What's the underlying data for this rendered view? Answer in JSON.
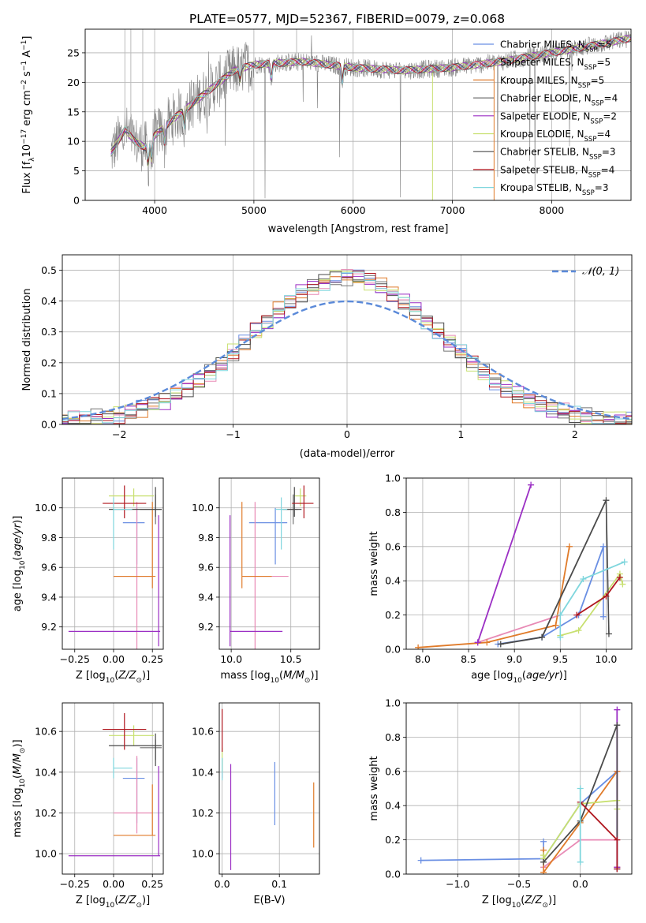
{
  "figure": {
    "title": "PLATE=0577, MJD=52367, FIBERID=0079, z=0.068"
  },
  "models": [
    {
      "name": "Chabrier MILES",
      "nssp": "5",
      "color": "#6a8fe3"
    },
    {
      "name": "Salpeter MILES",
      "nssp": "5",
      "color": "#e88ab5"
    },
    {
      "name": "Kroupa MILES",
      "nssp": "5",
      "color": "#e07b2a"
    },
    {
      "name": "Chabrier ELODIE",
      "nssp": "4",
      "color": "#737373"
    },
    {
      "name": "Salpeter ELODIE",
      "nssp": "2",
      "color": "#9b2fc4"
    },
    {
      "name": "Kroupa ELODIE",
      "nssp": "4",
      "color": "#c8e070"
    },
    {
      "name": "Chabrier STELIB",
      "nssp": "3",
      "color": "#4a4a4a"
    },
    {
      "name": "Salpeter STELIB",
      "nssp": "4",
      "color": "#b0171f"
    },
    {
      "name": "Kroupa STELIB",
      "nssp": "3",
      "color": "#7fd6dd"
    }
  ],
  "chart_data": [
    {
      "id": "spectrum",
      "type": "line",
      "title": "PLATE=0577, MJD=52367, FIBERID=0079, z=0.068",
      "xlabel": "wavelength [Angstrom, rest frame]",
      "ylabel": "Flux [fλ10⁻¹⁷ erg cm⁻² s⁻¹ A⁻¹]",
      "xlim": [
        3300,
        8800
      ],
      "ylim": [
        0,
        29
      ],
      "xticks": [
        4000,
        5000,
        6000,
        7000,
        8000
      ],
      "yticks": [
        0,
        5,
        10,
        15,
        20,
        25
      ],
      "data_color": "#808080",
      "continuum_anchors": [
        [
          3560,
          8
        ],
        [
          3700,
          12
        ],
        [
          3800,
          10
        ],
        [
          3900,
          9
        ],
        [
          4000,
          11
        ],
        [
          4200,
          14
        ],
        [
          4500,
          18
        ],
        [
          4800,
          22
        ],
        [
          5000,
          23
        ],
        [
          5500,
          23.5
        ],
        [
          6000,
          22.5
        ],
        [
          6500,
          22
        ],
        [
          7000,
          22.5
        ],
        [
          7500,
          23.5
        ],
        [
          8000,
          25
        ],
        [
          8500,
          26.5
        ],
        [
          8800,
          27.5
        ]
      ],
      "grid": true,
      "legend": "upper right"
    },
    {
      "id": "residuals",
      "type": "step",
      "xlabel": "(data-model)/error",
      "ylabel": "Normed distribution",
      "xlim": [
        -2.5,
        2.5
      ],
      "ylim": [
        0,
        0.55
      ],
      "xticks": [
        -2,
        -1,
        0,
        1,
        2
      ],
      "yticks": [
        0.0,
        0.1,
        0.2,
        0.3,
        0.4,
        0.5
      ],
      "normal_label": "𝒩(0, 1)",
      "normal_color": "#5b8ad9",
      "grid": true,
      "legend": "upper right"
    },
    {
      "id": "age-vs-Z",
      "type": "errorbar",
      "xlabel": "Z [log10(Z/Z⊙)]",
      "ylabel": "age [log10(age/yr)]",
      "xlim": [
        -0.33,
        0.32
      ],
      "ylim": [
        9.05,
        10.2
      ],
      "xticks": [
        -0.25,
        0.0,
        0.25
      ],
      "yticks": [
        9.2,
        9.4,
        9.6,
        9.8,
        10.0
      ],
      "points": [
        {
          "model": 0,
          "x": 0.15,
          "xerr": [
            0.09,
            0.05
          ],
          "y": 9.9,
          "yerr": [
            0.28,
            0.1
          ]
        },
        {
          "model": 1,
          "x": 0.15,
          "xerr": [
            0.15,
            0.1
          ],
          "y": 9.54,
          "yerr": [
            0.5,
            0.5
          ]
        },
        {
          "model": 2,
          "x": 0.25,
          "xerr": [
            0.25,
            0.02
          ],
          "y": 9.54,
          "yerr": [
            0.08,
            0.5
          ]
        },
        {
          "model": 3,
          "x": 0.27,
          "xerr": [
            0.1,
            0.04
          ],
          "y": 9.99,
          "yerr": [
            0.1,
            0.1
          ]
        },
        {
          "model": 4,
          "x": 0.29,
          "xerr": [
            0.58,
            0.01
          ],
          "y": 9.17,
          "yerr": [
            0.1,
            0.78
          ]
        },
        {
          "model": 5,
          "x": 0.13,
          "xerr": [
            0.16,
            0.13
          ],
          "y": 10.08,
          "yerr": [
            0.07,
            0.05
          ]
        },
        {
          "model": 6,
          "x": 0.27,
          "xerr": [
            0.3,
            0.04
          ],
          "y": 9.99,
          "yerr": [
            0.05,
            0.15
          ]
        },
        {
          "model": 7,
          "x": 0.07,
          "xerr": [
            0.14,
            0.14
          ],
          "y": 10.03,
          "yerr": [
            0.1,
            0.12
          ]
        },
        {
          "model": 8,
          "x": 0.0,
          "xerr": [
            0.0,
            0.12
          ],
          "y": 9.99,
          "yerr": [
            0.27,
            0.08
          ]
        }
      ]
    },
    {
      "id": "age-vs-mass",
      "type": "errorbar",
      "xlabel": "mass [log10(M/M⊙)]",
      "ylabel": "",
      "xlim": [
        9.9,
        10.74
      ],
      "ylim": [
        9.05,
        10.2
      ],
      "xticks": [
        10.0,
        10.5
      ],
      "yticks": [
        9.2,
        9.4,
        9.6,
        9.8,
        10.0
      ],
      "points": [
        {
          "model": 0,
          "x": 10.37,
          "xerr": [
            0.22,
            0.1
          ],
          "y": 9.9,
          "yerr": [
            0.28,
            0.1
          ]
        },
        {
          "model": 1,
          "x": 10.2,
          "xerr": [
            0.1,
            0.28
          ],
          "y": 9.54,
          "yerr": [
            0.5,
            0.5
          ]
        },
        {
          "model": 2,
          "x": 10.09,
          "xerr": [
            0.0,
            0.25
          ],
          "y": 9.54,
          "yerr": [
            0.08,
            0.5
          ]
        },
        {
          "model": 3,
          "x": 10.52,
          "xerr": [
            0.06,
            0.04
          ],
          "y": 9.99,
          "yerr": [
            0.1,
            0.1
          ]
        },
        {
          "model": 4,
          "x": 9.99,
          "xerr": [
            0.0,
            0.44
          ],
          "y": 9.17,
          "yerr": [
            0.1,
            0.78
          ]
        },
        {
          "model": 5,
          "x": 10.58,
          "xerr": [
            0.05,
            0.05
          ],
          "y": 10.08,
          "yerr": [
            0.07,
            0.05
          ]
        },
        {
          "model": 6,
          "x": 10.53,
          "xerr": [
            0.1,
            0.06
          ],
          "y": 9.99,
          "yerr": [
            0.05,
            0.15
          ]
        },
        {
          "model": 7,
          "x": 10.61,
          "xerr": [
            0.1,
            0.08
          ],
          "y": 10.03,
          "yerr": [
            0.1,
            0.12
          ]
        },
        {
          "model": 8,
          "x": 10.42,
          "xerr": [
            0.05,
            0.05
          ],
          "y": 9.99,
          "yerr": [
            0.27,
            0.08
          ]
        }
      ]
    },
    {
      "id": "weight-vs-age",
      "type": "line",
      "xlabel": "age [log10(age/yr)]",
      "ylabel": "mass weight",
      "xlim": [
        7.82,
        10.28
      ],
      "ylim": [
        0,
        1
      ],
      "xticks": [
        8.0,
        8.5,
        9.0,
        9.5,
        10.0
      ],
      "yticks": [
        0.0,
        0.2,
        0.4,
        0.6,
        0.8,
        1.0
      ],
      "series": [
        {
          "model": 0,
          "x": [
            8.82,
            9.3,
            9.7,
            9.97
          ],
          "y": [
            0.03,
            0.07,
            0.2,
            0.6
          ],
          "drop": [
            [
              9.97,
              0.19
            ]
          ]
        },
        {
          "model": 1,
          "x": [
            8.6,
            9.5
          ],
          "y": [
            0.04,
            0.2
          ]
        },
        {
          "model": 2,
          "x": [
            7.95,
            8.7,
            9.45,
            9.6
          ],
          "y": [
            0.01,
            0.04,
            0.14,
            0.6
          ]
        },
        {
          "model": 4,
          "x": [
            8.6,
            9.18
          ],
          "y": [
            0.04,
            0.96
          ]
        },
        {
          "model": 5,
          "x": [
            9.5,
            9.7,
            10.15,
            10.18
          ],
          "y": [
            0.08,
            0.11,
            0.44,
            0.38
          ]
        },
        {
          "model": 6,
          "x": [
            8.85,
            9.3,
            10.0
          ],
          "y": [
            0.03,
            0.07,
            0.87
          ],
          "drop": [
            [
              10.03,
              0.09
            ]
          ]
        },
        {
          "model": 7,
          "x": [
            9.68,
            10.0,
            10.15
          ],
          "y": [
            0.2,
            0.31,
            0.42
          ]
        },
        {
          "model": 8,
          "x": [
            9.5,
            9.75,
            10.2
          ],
          "y": [
            0.2,
            0.41,
            0.51
          ],
          "drop": [
            [
              9.5,
              0.07
            ]
          ]
        }
      ]
    },
    {
      "id": "mass-vs-Z",
      "type": "errorbar",
      "xlabel": "Z [log10(Z/Z⊙)]",
      "ylabel": "mass [log10(M/M⊙)]",
      "xlim": [
        -0.33,
        0.32
      ],
      "ylim": [
        9.9,
        10.74
      ],
      "xticks": [
        -0.25,
        0.0,
        0.25
      ],
      "yticks": [
        10.0,
        10.2,
        10.4,
        10.6
      ],
      "points": [
        {
          "model": 0,
          "x": 0.15,
          "xerr": [
            0.09,
            0.05
          ],
          "y": 10.37,
          "yerr": [
            0.22,
            0.1
          ]
        },
        {
          "model": 1,
          "x": 0.15,
          "xerr": [
            0.15,
            0.1
          ],
          "y": 10.2,
          "yerr": [
            0.1,
            0.28
          ]
        },
        {
          "model": 2,
          "x": 0.25,
          "xerr": [
            0.25,
            0.02
          ],
          "y": 10.09,
          "yerr": [
            0.0,
            0.25
          ]
        },
        {
          "model": 3,
          "x": 0.27,
          "xerr": [
            0.1,
            0.04
          ],
          "y": 10.52,
          "yerr": [
            0.06,
            0.04
          ]
        },
        {
          "model": 4,
          "x": 0.29,
          "xerr": [
            0.58,
            0.01
          ],
          "y": 9.99,
          "yerr": [
            0.0,
            0.44
          ]
        },
        {
          "model": 5,
          "x": 0.13,
          "xerr": [
            0.16,
            0.13
          ],
          "y": 10.58,
          "yerr": [
            0.05,
            0.05
          ]
        },
        {
          "model": 6,
          "x": 0.27,
          "xerr": [
            0.3,
            0.04
          ],
          "y": 10.53,
          "yerr": [
            0.1,
            0.06
          ]
        },
        {
          "model": 7,
          "x": 0.07,
          "xerr": [
            0.14,
            0.14
          ],
          "y": 10.61,
          "yerr": [
            0.1,
            0.08
          ]
        },
        {
          "model": 8,
          "x": 0.0,
          "xerr": [
            0.0,
            0.12
          ],
          "y": 10.42,
          "yerr": [
            0.05,
            0.05
          ]
        }
      ]
    },
    {
      "id": "mass-vs-EBV",
      "type": "errorbar",
      "xlabel": "E(B-V)",
      "ylabel": "",
      "xlim": [
        -0.005,
        0.17
      ],
      "ylim": [
        9.9,
        10.74
      ],
      "xticks": [
        0.0,
        0.1
      ],
      "yticks": [
        10.0,
        10.2,
        10.4,
        10.6
      ],
      "points": [
        {
          "model": 0,
          "x": 0.092,
          "xerr": [
            0,
            0
          ],
          "y": 10.3,
          "yerr": [
            0.16,
            0.15
          ]
        },
        {
          "model": 1,
          "x": 0.0,
          "xerr": [
            0,
            0
          ],
          "y": 10.42,
          "yerr": [
            0.05,
            0.05
          ]
        },
        {
          "model": 2,
          "x": 0.16,
          "xerr": [
            0,
            0
          ],
          "y": 10.2,
          "yerr": [
            0.17,
            0.15
          ]
        },
        {
          "model": 4,
          "x": 0.015,
          "xerr": [
            0,
            0
          ],
          "y": 10.18,
          "yerr": [
            0.26,
            0.26
          ]
        },
        {
          "model": 5,
          "x": 0.0,
          "xerr": [
            0,
            0
          ],
          "y": 10.46,
          "yerr": [
            0.06,
            0.06
          ]
        },
        {
          "model": 7,
          "x": 0.0,
          "xerr": [
            0,
            0
          ],
          "y": 10.6,
          "yerr": [
            0.1,
            0.11
          ]
        },
        {
          "model": 8,
          "x": 0.0,
          "xerr": [
            0,
            0
          ],
          "y": 10.42,
          "yerr": [
            0.06,
            0.05
          ]
        }
      ]
    },
    {
      "id": "weight-vs-Z",
      "type": "line",
      "xlabel": "Z [log10(Z/Z⊙)]",
      "ylabel": "mass weight",
      "xlim": [
        -1.42,
        0.42
      ],
      "ylim": [
        0,
        1
      ],
      "xticks": [
        -1.0,
        -0.5,
        0.0
      ],
      "yticks": [
        0.0,
        0.2,
        0.4,
        0.6,
        0.8,
        1.0
      ],
      "series": [
        {
          "model": 0,
          "x": [
            -1.3,
            -0.3,
            0.0,
            0.3
          ],
          "y": [
            0.08,
            0.09,
            0.41,
            0.6
          ],
          "drop": [
            [
              -0.3,
              0.19
            ],
            [
              0.3,
              0.03
            ]
          ]
        },
        {
          "model": 1,
          "x": [
            -0.3,
            0.0,
            0.3
          ],
          "y": [
            0.04,
            0.2,
            0.2
          ]
        },
        {
          "model": 2,
          "x": [
            -0.3,
            0.0,
            0.3
          ],
          "y": [
            0.01,
            0.3,
            0.6
          ],
          "drop": [
            [
              -0.3,
              0.14
            ],
            [
              0.3,
              0.04
            ]
          ]
        },
        {
          "model": 4,
          "x": [
            0.3,
            0.3
          ],
          "y": [
            0.04,
            0.96
          ]
        },
        {
          "model": 5,
          "x": [
            -0.3,
            0.0,
            0.3
          ],
          "y": [
            0.09,
            0.41,
            0.43
          ],
          "drop": [
            [
              -0.3,
              0.11
            ],
            [
              0.3,
              0.38
            ]
          ]
        },
        {
          "model": 6,
          "x": [
            -0.3,
            0.0,
            0.3
          ],
          "y": [
            0.07,
            0.31,
            0.87
          ],
          "drop": [
            [
              0.3,
              0.03
            ]
          ]
        },
        {
          "model": 7,
          "x": [
            0.0,
            0.3
          ],
          "y": [
            0.42,
            0.2
          ],
          "drop": [
            [
              0.3,
              0.03
            ]
          ]
        },
        {
          "model": 8,
          "x": [
            0.0,
            0.0
          ],
          "y": [
            0.07,
            0.5
          ]
        }
      ]
    }
  ]
}
